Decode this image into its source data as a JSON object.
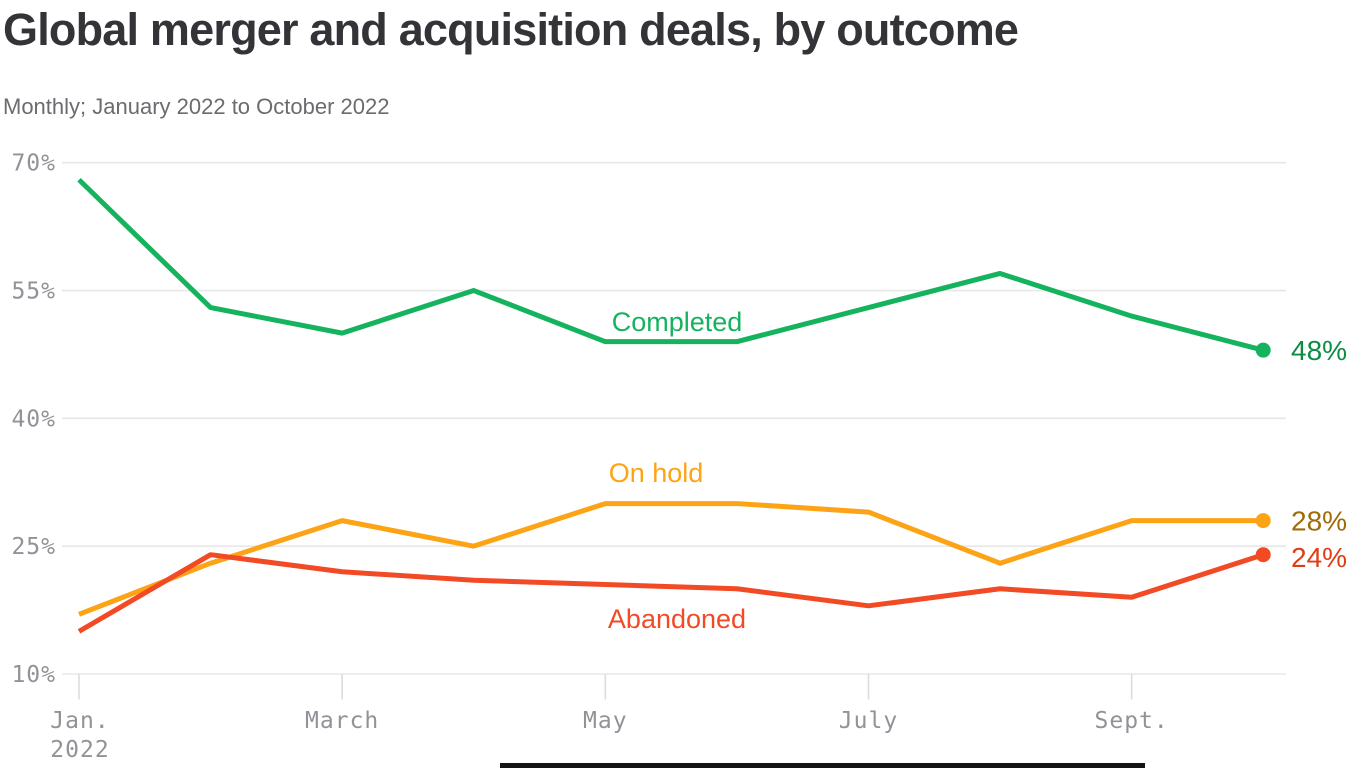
{
  "header": {
    "title": "Global merger and acquisition deals, by outcome",
    "subtitle": "Monthly; January 2022 to October 2022"
  },
  "chart_data": {
    "type": "line",
    "title": "Global merger and acquisition deals, by outcome",
    "subtitle": "Monthly; January 2022 to October 2022",
    "x": [
      "Jan 2022",
      "Feb 2022",
      "Mar 2022",
      "Apr 2022",
      "May 2022",
      "Jun 2022",
      "Jul 2022",
      "Aug 2022",
      "Sep 2022",
      "Oct 2022"
    ],
    "x_axis": {
      "ticks": [
        {
          "index": 0,
          "lines": [
            "Jan.",
            "2022"
          ]
        },
        {
          "index": 2,
          "lines": [
            "March"
          ]
        },
        {
          "index": 4,
          "lines": [
            "May"
          ]
        },
        {
          "index": 6,
          "lines": [
            "July"
          ]
        },
        {
          "index": 8,
          "lines": [
            "Sept."
          ]
        }
      ]
    },
    "y_axis": {
      "min": 10,
      "max": 70,
      "unit": "%",
      "ticks": [
        {
          "value": 70,
          "label": "70%"
        },
        {
          "value": 55,
          "label": "55%"
        },
        {
          "value": 40,
          "label": "40%"
        },
        {
          "value": 25,
          "label": "25%"
        },
        {
          "value": 10,
          "label": "10%"
        }
      ]
    },
    "grid": "horizontal-only",
    "legend": "inline-labels",
    "series": [
      {
        "name": "Completed",
        "color": "#16b35e",
        "end_label": "48%",
        "end_label_color": "#0c8c44",
        "values": [
          68,
          53,
          50,
          55,
          49,
          49,
          53,
          57,
          52,
          48
        ]
      },
      {
        "name": "On hold",
        "color": "#fda316",
        "end_label": "28%",
        "end_label_color": "#a06b06",
        "values": [
          17,
          23,
          28,
          25,
          30,
          30,
          29,
          23,
          28,
          28
        ]
      },
      {
        "name": "Abandoned",
        "color": "#f34a26",
        "end_label": "24%",
        "end_label_color": "#e03d14",
        "values": [
          15,
          24,
          22,
          21,
          20.5,
          20,
          18,
          20,
          19,
          24
        ]
      }
    ]
  }
}
